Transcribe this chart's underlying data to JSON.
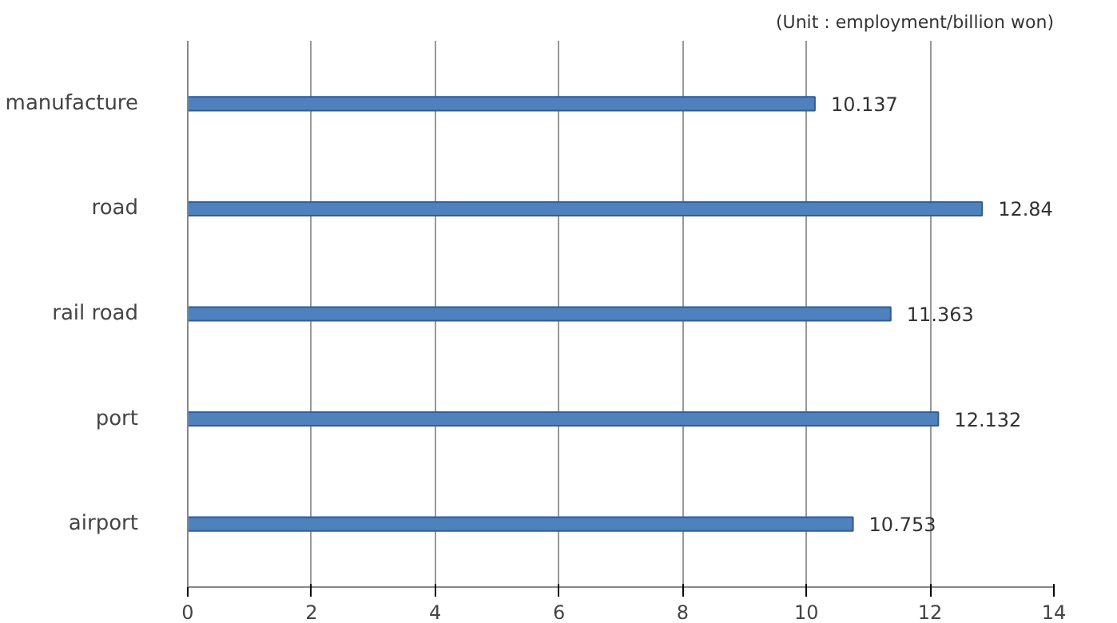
{
  "chart_data": {
    "type": "bar",
    "orientation": "horizontal",
    "categories": [
      "manufacture",
      "road",
      "rail road",
      "port",
      "airport"
    ],
    "values": [
      10.137,
      12.84,
      11.363,
      12.132,
      10.753
    ],
    "colors": [
      "#4f81bd",
      "#4f81bd",
      "#4f81bd",
      "#4f81bd",
      "#4f81bd"
    ],
    "xlim": [
      0,
      14
    ],
    "xticks": [
      0,
      2,
      4,
      6,
      8,
      10,
      12,
      14
    ],
    "grid": "x",
    "data_labels": true,
    "annotations": [
      "(Unit : employment/billion won)"
    ]
  }
}
